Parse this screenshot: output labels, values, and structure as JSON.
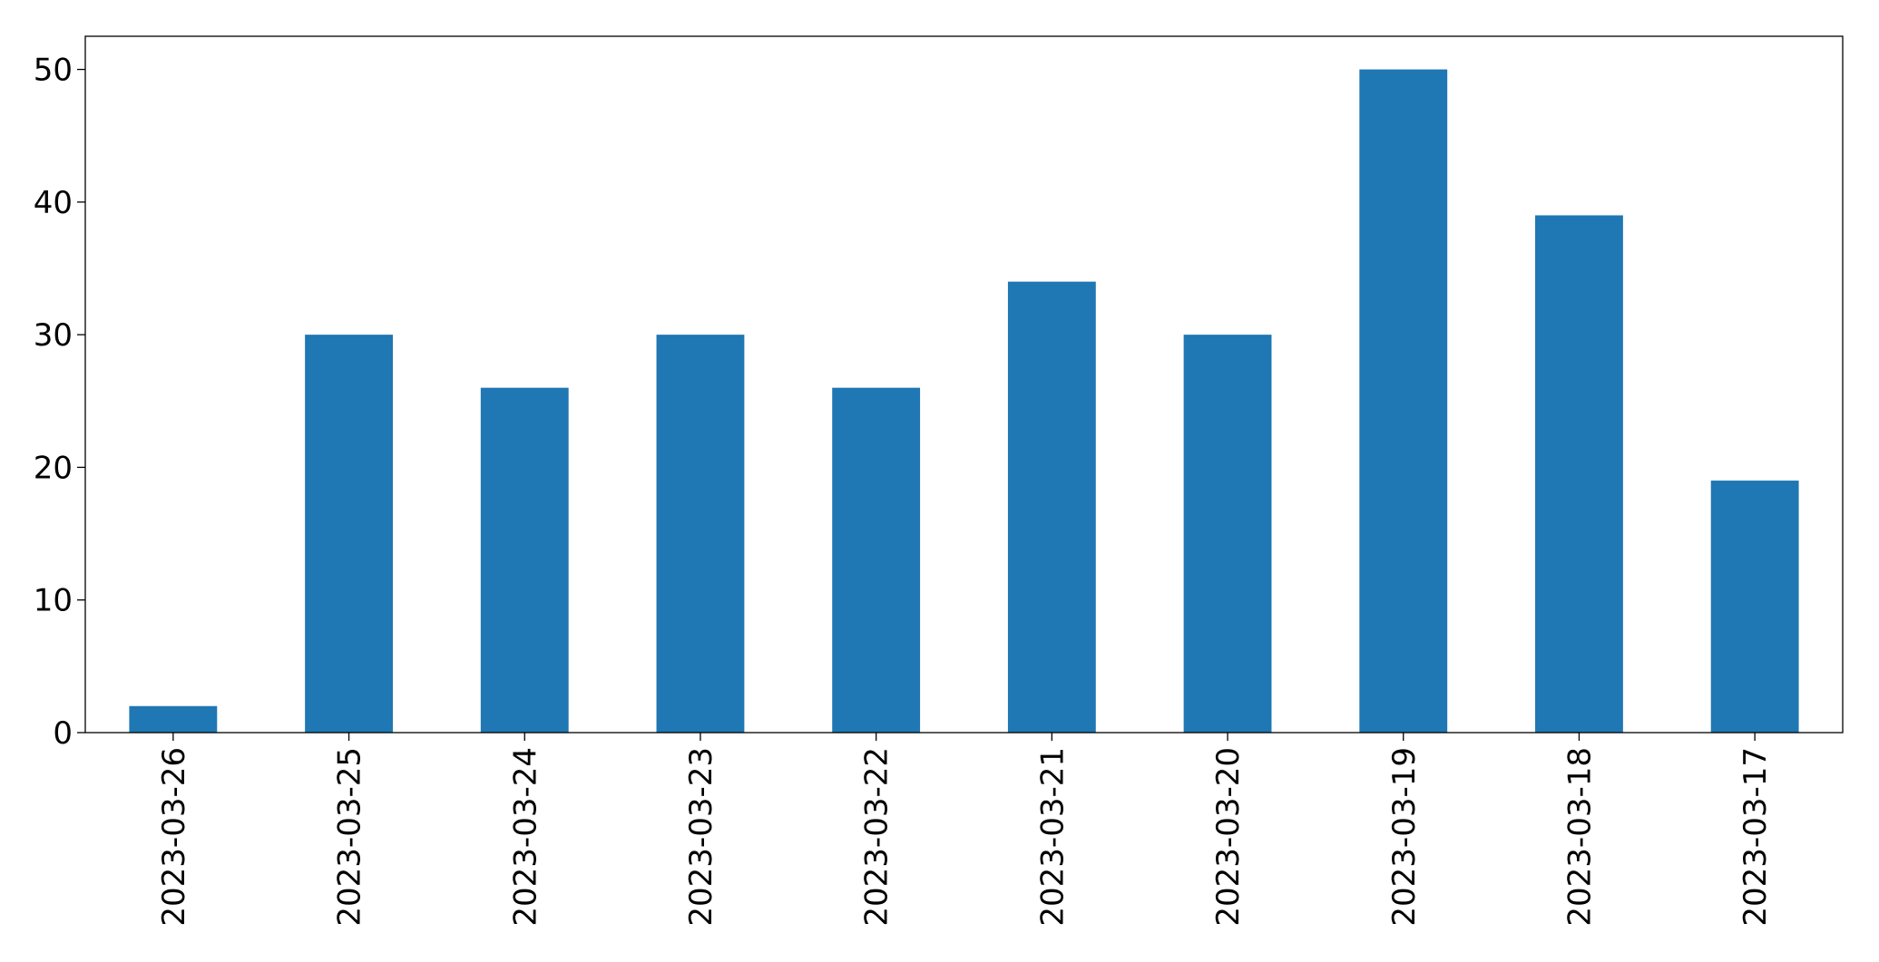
{
  "chart_data": {
    "type": "bar",
    "categories": [
      "2023-03-26",
      "2023-03-25",
      "2023-03-24",
      "2023-03-23",
      "2023-03-22",
      "2023-03-21",
      "2023-03-20",
      "2023-03-19",
      "2023-03-18",
      "2023-03-17"
    ],
    "values": [
      2,
      30,
      26,
      30,
      26,
      34,
      30,
      50,
      39,
      19
    ],
    "color": "#1f77b4",
    "ylim": [
      0,
      52.5
    ],
    "yticks": [
      0,
      10,
      20,
      30,
      40,
      50
    ],
    "grid": false
  }
}
